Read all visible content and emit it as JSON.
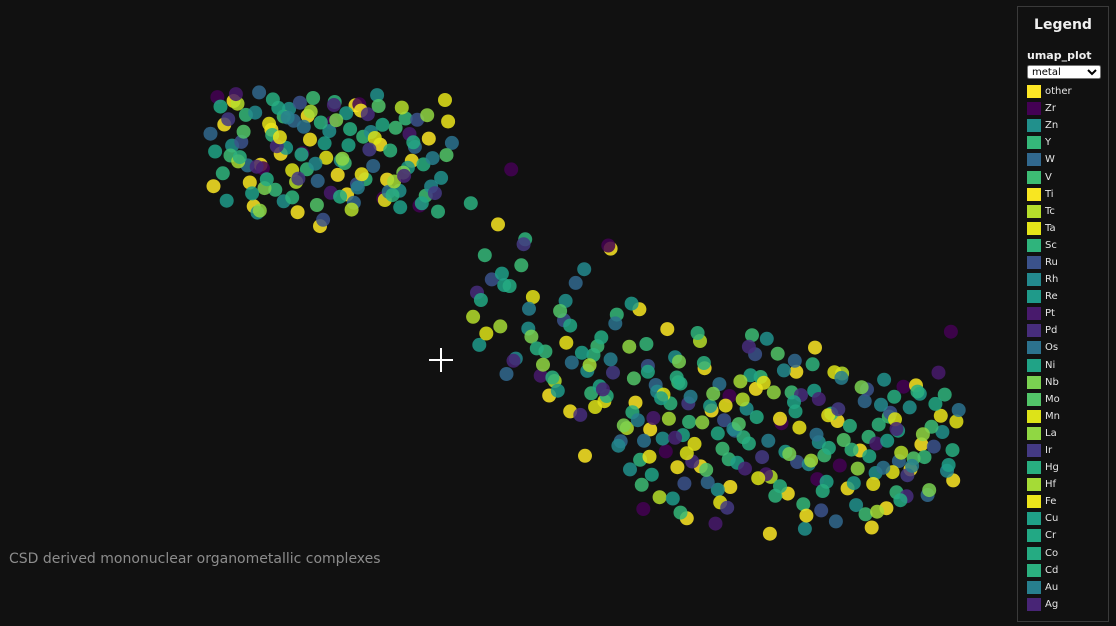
{
  "caption": "CSD derived mononuclear organometallic complexes",
  "legend": {
    "title": "Legend",
    "group_label": "umap_plot",
    "select_value": "metal",
    "items": [
      {
        "label": "other",
        "color": "#FDE725"
      },
      {
        "label": "Zr",
        "color": "#440154"
      },
      {
        "label": "Zn",
        "color": "#21908C"
      },
      {
        "label": "Y",
        "color": "#35B779"
      },
      {
        "label": "W",
        "color": "#31688E"
      },
      {
        "label": "V",
        "color": "#3DBC74"
      },
      {
        "label": "Ti",
        "color": "#F8E621"
      },
      {
        "label": "Tc",
        "color": "#B5DE2B"
      },
      {
        "label": "Ta",
        "color": "#E5E419"
      },
      {
        "label": "Sc",
        "color": "#2FB47C"
      },
      {
        "label": "Ru",
        "color": "#3B528B"
      },
      {
        "label": "Rh",
        "color": "#23898E"
      },
      {
        "label": "Re",
        "color": "#1F9A8A"
      },
      {
        "label": "Pt",
        "color": "#481A6C"
      },
      {
        "label": "Pd",
        "color": "#472D7B"
      },
      {
        "label": "Os",
        "color": "#2C728E"
      },
      {
        "label": "Ni",
        "color": "#20A386"
      },
      {
        "label": "Nb",
        "color": "#7AD151"
      },
      {
        "label": "Mo",
        "color": "#52C569"
      },
      {
        "label": "Mn",
        "color": "#DDE318"
      },
      {
        "label": "La",
        "color": "#90D743"
      },
      {
        "label": "Ir",
        "color": "#443A83"
      },
      {
        "label": "Hg",
        "color": "#28AE80"
      },
      {
        "label": "Hf",
        "color": "#A5DB36"
      },
      {
        "label": "Fe",
        "color": "#ECE51B"
      },
      {
        "label": "Cu",
        "color": "#1FA088"
      },
      {
        "label": "Cr",
        "color": "#22A884"
      },
      {
        "label": "Co",
        "color": "#25AB82"
      },
      {
        "label": "Cd",
        "color": "#2BB07F"
      },
      {
        "label": "Au",
        "color": "#277F8E"
      },
      {
        "label": "Ag",
        "color": "#482576"
      }
    ]
  },
  "chart_data": {
    "type": "scatter",
    "title": "",
    "legend_title": "Legend",
    "color_by": "metal",
    "xlim": [
      0,
      100
    ],
    "ylim": [
      0,
      100
    ],
    "point_opacity": 0.85,
    "series": [
      {
        "name": "other",
        "x": [
          5.1,
          12.4,
          19.8,
          8.9,
          22.1,
          14.6,
          3.7,
          25.3,
          9.8,
          17.5,
          11.2,
          21.0,
          6.3,
          26.2,
          15.9,
          31.6,
          45.2,
          53.1,
          60.4,
          71.8,
          64.7,
          58.2,
          75.9,
          82.3,
          88.6,
          93.1,
          68.5,
          79.4,
          85.2,
          91.7,
          56.3,
          49.8,
          73.6,
          97.2,
          62.9,
          66.1,
          86.7,
          77.0
        ],
        "y": [
          83.5,
          74.6,
          68.2,
          58.7,
          89.3,
          56.9,
          64.8,
          77.4,
          71.3,
          52.7,
          81.9,
          62.3,
          90.6,
          66.8,
          86.1,
          79.2,
          44.2,
          77.6,
          59.3,
          45.7,
          28.1,
          36.5,
          21.9,
          38.4,
          18.6,
          33.1,
          23.4,
          55.1,
          31.7,
          27.4,
          42.6,
          30.5,
          12.8,
          24.9,
          16.3,
          40.8,
          14.2,
          49.6
        ]
      },
      {
        "name": "Zr",
        "x": [
          4.2,
          10.1,
          19.0,
          25.7,
          15.2,
          22.6,
          30.4,
          40.3,
          52.8,
          60.2,
          68.4,
          75.1,
          82.6,
          90.8,
          96.9,
          57.3,
          79.7
        ],
        "y": [
          91.8,
          70.2,
          84.0,
          61.1,
          74.8,
          89.6,
          58.9,
          95.6,
          78.3,
          31.5,
          44.1,
          37.9,
          28.3,
          46.2,
          58.7,
          18.4,
          25.2
        ]
      },
      {
        "name": "Zn",
        "x": [
          6.1,
          13.5,
          20.2,
          27.8,
          9.4,
          18.7,
          24.9,
          33.2,
          42.5,
          50.1,
          61.4,
          70.6,
          79.9,
          88.3,
          95.8,
          55.6,
          66.9,
          73.2,
          84.7,
          91.6,
          47.3,
          59.8,
          78.1,
          87.2,
          12.8
        ],
        "y": [
          77.1,
          88.2,
          72.6,
          63.4,
          56.8,
          81.5,
          92.4,
          67.3,
          59.4,
          49.8,
          52.9,
          41.2,
          33.6,
          47.8,
          35.9,
          27.4,
          22.8,
          57.1,
          19.3,
          41.5,
          65.7,
          34.4,
          13.9,
          26.6,
          60.2
        ]
      },
      {
        "name": "Y",
        "x": [
          7.9,
          15.8,
          23.1,
          11.7,
          28.6,
          36.9,
          44.7,
          53.9,
          63.2,
          72.4,
          81.5,
          89.9,
          57.7,
          68.3,
          77.9,
          86.3,
          93.5,
          50.6,
          62.1
        ],
        "y": [
          86.4,
          69.9,
          79.8,
          63.7,
          85.3,
          76.1,
          54.2,
          62.6,
          38.2,
          48.4,
          40.1,
          22.2,
          55.9,
          29.7,
          19.5,
          34.8,
          30.2,
          44.7,
          17.6
        ]
      },
      {
        "name": "W",
        "x": [
          3.3,
          9.6,
          17.2,
          24.4,
          14.1,
          21.9,
          29.8,
          39.7,
          48.6,
          58.9,
          69.1,
          76.8,
          85.8,
          93.9,
          54.4,
          65.6,
          82.1,
          90.2
        ],
        "y": [
          80.7,
          93.2,
          66.4,
          70.9,
          84.6,
          59.8,
          76.7,
          49.1,
          69.8,
          46.6,
          36.2,
          52.1,
          42.9,
          21.6,
          33.8,
          24.5,
          15.6,
          29.3
        ]
      },
      {
        "name": "V",
        "x": [
          5.9,
          12.8,
          20.7,
          27.3,
          16.6,
          31.2,
          41.6,
          51.4,
          61.8,
          71.3,
          80.6,
          88.9,
          57.1,
          67.5,
          76.4,
          85.9,
          94.4
        ],
        "y": [
          74.1,
          85.9,
          71.8,
          82.5,
          91.5,
          61.9,
          73.8,
          55.4,
          47.2,
          57.9,
          30.6,
          39.4,
          23.9,
          32.1,
          44.9,
          17.2,
          37.1
        ]
      },
      {
        "name": "Ti",
        "x": [
          8.4,
          16.2,
          22.8,
          29.4,
          38.6,
          47.9,
          56.8,
          65.2,
          74.9,
          83.6,
          92.4,
          61.7,
          78.3
        ],
        "y": [
          65.9,
          78.9,
          87.7,
          72.5,
          83.1,
          40.6,
          63.8,
          50.4,
          38.9,
          23.1,
          46.5,
          27.9,
          16.9
        ]
      },
      {
        "name": "Tc",
        "x": [
          6.8,
          14.4,
          21.6,
          28.1,
          35.4,
          45.9,
          55.2,
          64.6,
          73.7,
          82.9,
          90.5,
          59.4,
          70.1
        ],
        "y": [
          89.8,
          66.1,
          57.7,
          88.6,
          62.1,
          47.5,
          36.8,
          56.6,
          25.7,
          49.2,
          31.2,
          21.1,
          43.3
        ]
      },
      {
        "name": "Ta",
        "x": [
          10.9,
          18.3,
          25.9,
          33.7,
          43.1,
          52.3,
          63.9,
          72.8,
          81.1,
          89.4,
          97.6,
          67.2
        ],
        "y": [
          83.7,
          73.4,
          60.6,
          90.9,
          66.6,
          42.9,
          33.2,
          47.1,
          39.7,
          26.8,
          38.3,
          19.9
        ]
      },
      {
        "name": "Sc",
        "x": [
          4.9,
          11.3,
          19.4,
          26.6,
          13.9,
          23.4,
          32.8,
          42.1,
          50.9,
          60.8,
          70.2,
          79.1,
          87.6,
          96.1,
          56.9,
          74.3,
          84.1,
          64.3
        ],
        "y": [
          68.7,
          80.3,
          90.3,
          75.6,
          61.4,
          66.9,
          57.1,
          79.7,
          53.4,
          42.4,
          34.7,
          51.3,
          37.6,
          44.4,
          29.6,
          21.4,
          31.9,
          58.4
        ]
      },
      {
        "name": "Ru",
        "x": [
          7.3,
          14.9,
          22.3,
          30.1,
          17.9,
          37.8,
          47.1,
          57.9,
          67.7,
          77.1,
          86.1,
          94.7,
          62.6,
          71.7,
          80.2,
          89.1
        ],
        "y": [
          78.2,
          90.1,
          65.4,
          84.9,
          54.6,
          70.6,
          61.3,
          50.9,
          38.6,
          29.1,
          45.6,
          32.6,
          24.2,
          53.6,
          18.1,
          40.3
        ]
      },
      {
        "name": "Rh",
        "x": [
          9.1,
          16.9,
          24.1,
          31.9,
          40.9,
          49.7,
          59.1,
          68.9,
          78.6,
          87.9,
          96.4,
          54.1,
          75.4
        ],
        "y": [
          87.1,
          71.6,
          81.2,
          64.7,
          52.6,
          72.9,
          45.1,
          36.6,
          28.6,
          42.1,
          27.1,
          32.8,
          49.9
        ]
      },
      {
        "name": "Re",
        "x": [
          5.4,
          13.1,
          20.9,
          28.9,
          36.2,
          46.3,
          55.8,
          65.9,
          75.6,
          84.4,
          92.9,
          61.1
        ],
        "y": [
          60.4,
          76.4,
          86.9,
          70.4,
          55.7,
          45.3,
          65.1,
          41.8,
          31.4,
          24.3,
          44.6,
          20.8
        ]
      },
      {
        "name": "Pt",
        "x": [
          6.6,
          18.9,
          29.1,
          44.1,
          58.6,
          73.1,
          87.3,
          95.3,
          66.6
        ],
        "y": [
          92.7,
          62.8,
          80.6,
          48.7,
          39.1,
          26.3,
          33.3,
          49.4,
          15.1
        ]
      },
      {
        "name": "Pd",
        "x": [
          11.9,
          23.7,
          35.9,
          49.2,
          63.6,
          77.6,
          91.2,
          70.9
        ],
        "y": [
          76.9,
          86.6,
          67.6,
          39.8,
          29.2,
          44.3,
          21.3,
          55.3
        ]
      },
      {
        "name": "Os",
        "x": [
          8.1,
          15.4,
          26.4,
          34.6,
          48.1,
          57.4,
          67.1,
          79.6,
          88.2,
          97.9,
          53.7
        ],
        "y": [
          71.1,
          82.8,
          63.1,
          77.9,
          51.7,
          33.9,
          46.8,
          35.3,
          27.8,
          40.9,
          60.6
        ]
      },
      {
        "name": "Ni",
        "x": [
          3.9,
          12.1,
          21.2,
          30.7,
          39.4,
          51.7,
          62.4,
          71.1,
          80.9,
          90.1,
          58.4,
          76.7
        ],
        "y": [
          75.3,
          88.5,
          77.2,
          59.6,
          69.3,
          46.3,
          35.2,
          48.8,
          24.6,
          36.2,
          26.2,
          42.7
        ]
      },
      {
        "name": "Nb",
        "x": [
          10.3,
          19.6,
          28.3,
          42.9,
          54.8,
          66.3,
          76.1,
          85.4,
          94.1,
          61.9
        ],
        "y": [
          64.2,
          84.8,
          68.9,
          57.6,
          37.4,
          44.6,
          30.9,
          46.1,
          22.7,
          51.9
        ]
      },
      {
        "name": "Mo",
        "x": [
          7.6,
          17.1,
          25.1,
          33.9,
          46.6,
          56.1,
          65.4,
          74.6,
          83.1,
          92.1,
          69.6
        ],
        "y": [
          81.3,
          59.1,
          89.1,
          74.2,
          63.4,
          48.1,
          27.3,
          53.7,
          34.1,
          29.9,
          37.7
        ]
      },
      {
        "name": "Mn",
        "x": [
          13.9,
          24.6,
          37.1,
          51.1,
          62.9,
          72.1,
          81.9,
          89.7,
          59.9
        ],
        "y": [
          69.6,
          79.4,
          58.3,
          41.6,
          31.1,
          25.4,
          49.5,
          38.8,
          44.4
        ]
      },
      {
        "name": "La",
        "x": [
          9.7,
          20.4,
          31.4,
          44.4,
          55.5,
          64.9,
          74.1,
          84.9,
          93.3
        ],
        "y": [
          57.4,
          73.1,
          86.3,
          51.2,
          55.3,
          38.1,
          44.9,
          27.6,
          35.4
        ]
      },
      {
        "name": "Ir",
        "x": [
          5.6,
          14.7,
          23.9,
          32.4,
          41.9,
          53.4,
          63.1,
          72.6,
          82.4,
          91.3,
          68.1
        ],
        "y": [
          85.1,
          67.1,
          75.9,
          62.7,
          78.6,
          49.4,
          42.4,
          30.2,
          41.1,
          26.1,
          18.7
        ]
      },
      {
        "name": "Hg",
        "x": [
          11.4,
          21.4,
          30.9,
          43.6,
          52.6,
          61.6,
          70.9,
          80.4,
          89.6,
          97.1
        ],
        "y": [
          91.1,
          82.1,
          71.4,
          54.9,
          44.1,
          48.3,
          33.3,
          22.5,
          43.9,
          31.8
        ]
      },
      {
        "name": "Hf",
        "x": [
          6.9,
          16.3,
          27.1,
          38.9,
          50.4,
          60.6,
          69.8,
          78.9,
          87.4
        ],
        "y": [
          72.3,
          87.4,
          66.2,
          59.9,
          51.1,
          38.9,
          47.4,
          29.4,
          17.8
        ]
      },
      {
        "name": "Fe",
        "x": [
          12.3,
          22.9,
          34.1,
          47.4,
          58.1,
          67.9,
          77.4,
          86.9,
          95.6
        ],
        "y": [
          79.6,
          68.4,
          84.4,
          56.2,
          30.3,
          41.9,
          36.9,
          24.1,
          39.6
        ]
      },
      {
        "name": "Cu",
        "x": [
          8.7,
          18.1,
          27.9,
          39.1,
          49.4,
          59.6,
          69.4,
          79.3,
          88.7,
          96.6
        ],
        "y": [
          62.6,
          77.8,
          58.4,
          71.9,
          53.9,
          43.6,
          28.9,
          45.3,
          33.9,
          28.4
        ]
      },
      {
        "name": "Cr",
        "x": [
          4.6,
          15.1,
          25.6,
          36.4,
          47.9,
          57.9,
          66.9,
          76.9,
          86.4,
          94.9
        ],
        "y": [
          88.9,
          74.4,
          83.4,
          65.9,
          60.1,
          49.6,
          35.6,
          40.6,
          30.4,
          42.3
        ]
      },
      {
        "name": "Co",
        "x": [
          10.6,
          20.1,
          29.6,
          40.1,
          51.9,
          62.1,
          71.9,
          81.2,
          90.4
        ],
        "y": [
          66.9,
          61.6,
          78.1,
          69.1,
          57.4,
          46.9,
          39.3,
          32.3,
          20.4
        ]
      },
      {
        "name": "Cd",
        "x": [
          7.1,
          17.6,
          26.9,
          35.1,
          45.6,
          55.9,
          65.1,
          74.9,
          83.9,
          92.6
        ],
        "y": [
          73.6,
          84.1,
          62.1,
          87.9,
          48.3,
          40.4,
          51.6,
          23.6,
          37.3,
          45.1
        ]
      },
      {
        "name": "Au",
        "x": [
          13.3,
          22.4,
          32.1,
          42.6,
          53.1,
          63.4,
          73.4,
          82.8,
          91.9,
          56.6
        ],
        "y": [
          85.6,
          64.4,
          73.3,
          63.9,
          52.4,
          43.9,
          33.9,
          48.2,
          28.2,
          38.6
        ]
      },
      {
        "name": "Ag",
        "x": [
          9.3,
          19.3,
          28.4,
          40.6,
          52.1,
          61.4,
          70.4,
          79.9,
          89.9
        ],
        "y": [
          70.7,
          89.4,
          67.9,
          52.1,
          45.6,
          34.6,
          27.6,
          43.4,
          36.6
        ]
      }
    ]
  }
}
